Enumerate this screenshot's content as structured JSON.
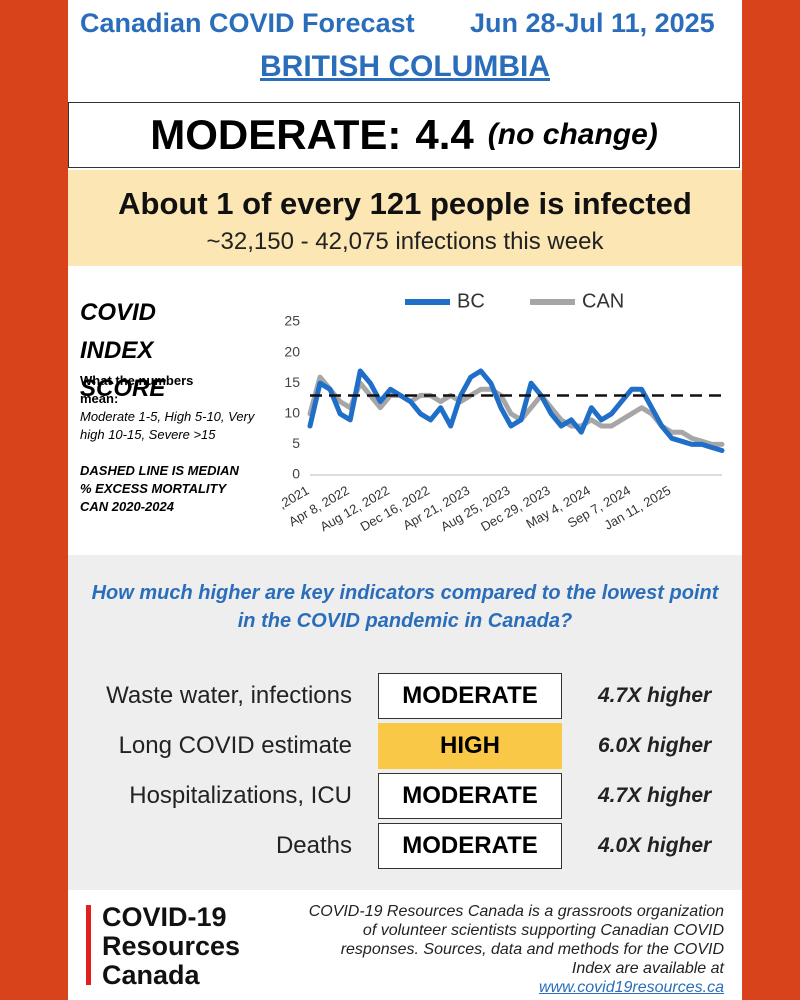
{
  "header": {
    "title": "Canadian COVID Forecast",
    "dates": "Jun 28-Jul 11, 2025",
    "region": "BRITISH COLUMBIA"
  },
  "status": {
    "level": "MODERATE:",
    "score": "4.4",
    "change": "(no change)"
  },
  "infection": {
    "headline": "About 1 of every 121 people is infected",
    "range": "~32,150 - 42,075 infections this week"
  },
  "index_info": {
    "title": "COVID INDEX SCORE",
    "meaning_title": "What the numbers mean:",
    "meaning": "Moderate 1-5, High 5-10, Very high 10-15, Severe >15",
    "dashed_note": "DASHED LINE IS MEDIAN % EXCESS MORTALITY CAN 2020-2024"
  },
  "chart_data": {
    "type": "line",
    "categories": [
      ",2021",
      null,
      null,
      null,
      "Apr 8, 2022",
      null,
      null,
      null,
      "Aug 12, 2022",
      null,
      null,
      null,
      "Dec 16, 2022",
      null,
      null,
      null,
      "Apr 21, 2023",
      null,
      null,
      null,
      "Aug 25, 2023",
      null,
      null,
      null,
      "Dec 29, 2023",
      null,
      null,
      null,
      "May 4, 2024",
      null,
      null,
      null,
      "Sep 7, 2024",
      null,
      null,
      null,
      "Jan 11, 2025",
      null,
      null,
      null,
      null,
      null
    ],
    "series": [
      {
        "name": "BC",
        "color": "#1f6fc8",
        "values": [
          8,
          15,
          14,
          10,
          9,
          17,
          15,
          12,
          14,
          13,
          12,
          10,
          9,
          11,
          8,
          13,
          16,
          17,
          15,
          11,
          8,
          9,
          15,
          13,
          10,
          8,
          9,
          7,
          11,
          9,
          10,
          12,
          14,
          14,
          11,
          8,
          6,
          5.5,
          5,
          5,
          4.5,
          4
        ]
      },
      {
        "name": "CAN",
        "color": "#a6a6a6",
        "values": [
          10,
          16,
          14,
          12,
          11,
          15,
          13,
          11,
          13,
          13,
          12,
          13,
          13,
          12,
          13,
          12,
          13,
          14,
          14,
          13,
          10,
          9,
          11,
          13,
          11,
          9,
          8,
          8,
          9,
          8,
          8,
          9,
          10,
          11,
          10,
          8,
          7,
          7,
          6,
          5.5,
          5,
          5
        ]
      }
    ],
    "hline": 13,
    "ylim": [
      0,
      25
    ],
    "yticks": [
      0,
      5,
      10,
      15,
      20,
      25
    ],
    "grid": false,
    "legend": "top"
  },
  "indicators": {
    "question": "How much higher are key indicators compared to the lowest point in the COVID pandemic in Canada?",
    "rows": [
      {
        "name": "Waste water, infections",
        "level": "MODERATE",
        "multiplier": "4.7X higher",
        "color": "#ffffff"
      },
      {
        "name": "Long COVID estimate",
        "level": "HIGH",
        "multiplier": "6.0X higher",
        "color": "#f9c846"
      },
      {
        "name": "Hospitalizations, ICU",
        "level": "MODERATE",
        "multiplier": "4.7X higher",
        "color": "#ffffff"
      },
      {
        "name": "Deaths",
        "level": "MODERATE",
        "multiplier": "4.0X higher",
        "color": "#ffffff"
      }
    ]
  },
  "footer": {
    "logo": [
      "COVID-19",
      "Resources",
      "Canada"
    ],
    "text": "COVID-19 Resources Canada is a grassroots organization of volunteer scientists supporting Canadian COVID responses. Sources, data and methods for the COVID Index are available at",
    "link": "www.covid19resources.ca"
  }
}
